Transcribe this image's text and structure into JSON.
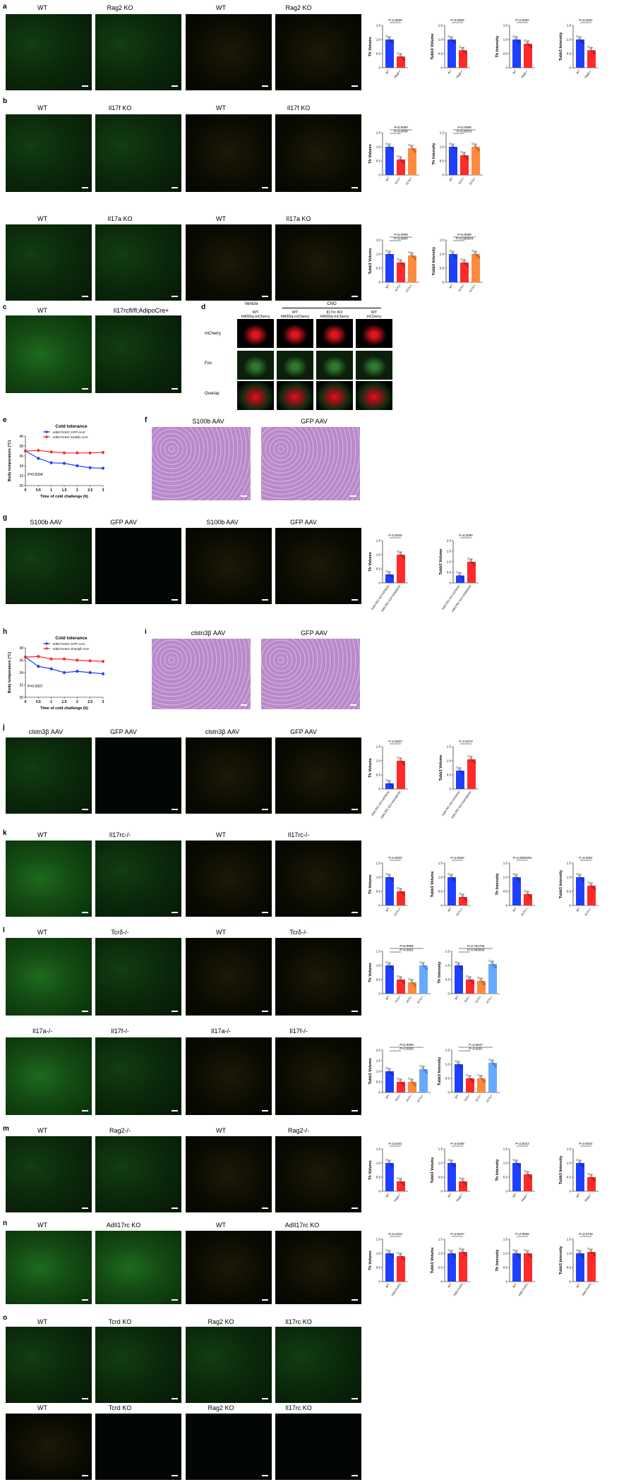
{
  "panels": {
    "a": {
      "letter": "a",
      "labels": [
        "WT",
        "Rag2 KO",
        "WT",
        "Rag2 KO"
      ]
    },
    "b": {
      "letter": "b",
      "labels": [
        "WT",
        "Il17f KO",
        "WT",
        "Il17f KO"
      ],
      "labels2": [
        "WT",
        "Il17a KO",
        "WT",
        "Il17a KO"
      ]
    },
    "c": {
      "letter": "c",
      "labels": [
        "WT",
        "Il17rcfl/fl;AdipoCre+"
      ]
    },
    "d": {
      "letter": "d",
      "group_labels": [
        "Vehicle",
        "CNO"
      ],
      "col_labels": [
        "WT\nhM3Dq-mCherry",
        "WT\nhM3Dq-mCherry",
        "Il17rc KO\nhM3Dq-mCherry",
        "WT\nmCherry"
      ],
      "row_labels": [
        "mCherry",
        "Fos",
        "Overlay"
      ]
    },
    "e": {
      "letter": "e"
    },
    "f": {
      "letter": "f",
      "labels": [
        "S100b AAV",
        "GFP AAV"
      ]
    },
    "g": {
      "letter": "g",
      "labels": [
        "S100b AAV",
        "GFP AAV",
        "S100b AAV",
        "GFP AAV"
      ]
    },
    "h": {
      "letter": "h"
    },
    "i": {
      "letter": "i",
      "labels": [
        "clstn3β AAV",
        "GFP AAV"
      ]
    },
    "j": {
      "letter": "j",
      "labels": [
        "clstn3β AAV",
        "GFP AAV",
        "clstn3β AAV",
        "GFP AAV"
      ]
    },
    "k": {
      "letter": "k",
      "labels": [
        "WT",
        "Il17rc-/-",
        "WT",
        "Il17rc-/-"
      ]
    },
    "l": {
      "letter": "l",
      "labels": [
        "WT",
        "Tcrδ-/-",
        "WT",
        "Tcrδ-/-"
      ],
      "labels2": [
        "Il17a-/-",
        "Il17f-/-",
        "Il17a-/-",
        "Il17f-/-"
      ]
    },
    "m": {
      "letter": "m",
      "labels": [
        "WT",
        "Rag2-/-",
        "WT",
        "Rag2-/-"
      ]
    },
    "n": {
      "letter": "n",
      "labels": [
        "WT",
        "AdIl17rc KO",
        "WT",
        "AdIl17rc KO"
      ]
    },
    "o": {
      "letter": "o",
      "labels": [
        "WT",
        "Tcrd KO",
        "Rag2 KO",
        "Il17rc KO"
      ],
      "labels2": [
        "WT",
        "Tcrd KO",
        "Rag2 KO",
        "Il17rc KO"
      ]
    }
  },
  "colors": {
    "blue": "#1f3fff",
    "red": "#ff2a2a",
    "orange": "#ff8a3d",
    "lightblue": "#66aaff",
    "green_signal": "#2f9a2f",
    "yellow_signal": "#d6c23a"
  },
  "chart_data": [
    {
      "id": "a1",
      "type": "bar",
      "ylabel": "Th Volume",
      "categories": [
        "WT",
        "Rag2-/-"
      ],
      "values": [
        1.0,
        0.4
      ],
      "p": "P=0.0035",
      "ylim": [
        0,
        1.5
      ],
      "yticks": [
        "0",
        "0.5",
        "1.0",
        "1.5"
      ]
    },
    {
      "id": "a2",
      "type": "bar",
      "ylabel": "Tubb3 Volume",
      "categories": [
        "WT",
        "Rag2-/-"
      ],
      "values": [
        1.0,
        0.62
      ],
      "p": "P=0.0004",
      "ylim": [
        0,
        1.5
      ],
      "yticks": [
        "0",
        "0.5",
        "1.0",
        "1.5"
      ]
    },
    {
      "id": "a3",
      "type": "bar",
      "ylabel": "Th Intensity",
      "categories": [
        "WT",
        "Rag2-/-"
      ],
      "values": [
        1.0,
        0.85
      ],
      "p": "P=0.0002",
      "ylim": [
        0,
        1.5
      ],
      "yticks": [
        "0",
        "0.5",
        "1.0",
        "1.5"
      ]
    },
    {
      "id": "a4",
      "type": "bar",
      "ylabel": "Tubb3 Intensity",
      "categories": [
        "WT",
        "Rag2-/-"
      ],
      "values": [
        1.0,
        0.62
      ],
      "p": "P=0.0281",
      "ylim": [
        0,
        1.5
      ],
      "yticks": [
        "0",
        "0.5",
        "1.0",
        "1.5"
      ]
    },
    {
      "id": "b1",
      "type": "bar",
      "ylabel": "Th Volume",
      "categories": [
        "WT",
        "Il17f-/-",
        "Il17a-/-"
      ],
      "values": [
        1.0,
        0.55,
        0.95
      ],
      "p": "P<0.9999",
      "p2": "P=0.0056",
      "ylim": [
        0,
        1.5
      ],
      "yticks": [
        "0",
        "0.5",
        "1.0",
        "1.5"
      ]
    },
    {
      "id": "b2",
      "type": "bar",
      "ylabel": "Th Intensity",
      "categories": [
        "WT",
        "Il17f-/-",
        "Il17a-/-"
      ],
      "values": [
        1.0,
        0.7,
        1.0
      ],
      "p": "P<0.9999",
      "p2": "P=0.00031",
      "ylim": [
        0,
        1.5
      ],
      "yticks": [
        "0",
        "0.5",
        "1.0",
        "1.5"
      ]
    },
    {
      "id": "b3",
      "type": "bar",
      "ylabel": "Tubb3 Volume",
      "categories": [
        "WT",
        "Il17f-/-",
        "Il17a-/-"
      ],
      "values": [
        1.0,
        0.7,
        0.95
      ],
      "p": "P<0.9999",
      "p2": "P=0.0005",
      "ylim": [
        0,
        1.5
      ],
      "yticks": [
        "0",
        "0.5",
        "1.0",
        "1.5"
      ]
    },
    {
      "id": "b4",
      "type": "bar",
      "ylabel": "Tubb3 Intensity",
      "categories": [
        "WT",
        "Il17f-/-",
        "Il17a-/-"
      ],
      "values": [
        1.0,
        0.7,
        1.0
      ],
      "p": "P<0.9999",
      "p2": "P=0.000004",
      "ylim": [
        0,
        1.5
      ],
      "yticks": [
        "0",
        "0.5",
        "1.0",
        "1.5"
      ]
    },
    {
      "id": "e",
      "type": "line",
      "title": "Cold tolerance",
      "xlabel": "Time of cold challenge (h)",
      "ylabel": "Body temperature (°C)",
      "x": [
        0,
        0.5,
        1,
        1.5,
        2,
        2.5,
        3
      ],
      "xticks": [
        "0",
        "0.5",
        "1",
        "1.5",
        "2",
        "2.5",
        "3"
      ],
      "yticks": [
        "30",
        "32",
        "34",
        "36",
        "38",
        "40"
      ],
      "ylim": [
        30,
        40
      ],
      "series": [
        {
          "name": "AdIl17rcKO GFP-AAV",
          "values": [
            37.0,
            35.5,
            34.6,
            34.5,
            34.0,
            33.6,
            33.5
          ],
          "color": "blue"
        },
        {
          "name": "AdIl17rcKO S100b-AAV",
          "values": [
            37.0,
            37.1,
            36.8,
            36.6,
            36.6,
            36.6,
            36.7
          ],
          "color": "red"
        }
      ],
      "p": "P=0.0004"
    },
    {
      "id": "g1",
      "type": "bar",
      "ylabel": "Th Volume",
      "categories": [
        "AdIl17RC KO+GFPAAV",
        "AdIl17RC KO+S100bAAV"
      ],
      "values": [
        0.3,
        1.0
      ],
      "p": "P=0.0045",
      "ylim": [
        0,
        1.5
      ],
      "yticks": [
        "0",
        "0.5",
        "1.0",
        "1.5"
      ]
    },
    {
      "id": "g2",
      "type": "bar",
      "ylabel": "Tubb3 Volume",
      "categories": [
        "AdIl17RC KO+GFPAAV",
        "AdIl17RC KO+S100bAAV"
      ],
      "values": [
        0.35,
        1.0
      ],
      "p": "P=0.0095",
      "ylim": [
        0,
        2.0
      ],
      "yticks": [
        "0",
        "0.5",
        "1.0",
        "1.5",
        "2.0"
      ]
    },
    {
      "id": "h",
      "type": "line",
      "title": "Cold tolerance",
      "xlabel": "Time of cold challenge (h)",
      "ylabel": "Body temperature (°C)",
      "x": [
        0,
        0.5,
        1,
        1.5,
        2,
        2.5,
        3
      ],
      "xticks": [
        "0",
        "0.5",
        "1",
        "1.5",
        "2",
        "2.5",
        "3"
      ],
      "yticks": [
        "30",
        "32",
        "34",
        "36",
        "38"
      ],
      "ylim": [
        30,
        38
      ],
      "series": [
        {
          "name": "AdIl17rcKO GFP-AAV",
          "values": [
            36.5,
            35.0,
            34.6,
            34.0,
            34.2,
            34.0,
            33.8
          ],
          "color": "blue"
        },
        {
          "name": "AdIl17rcKO clstn3β-AAV",
          "values": [
            36.5,
            36.6,
            36.2,
            36.2,
            36.0,
            35.9,
            35.8
          ],
          "color": "red"
        }
      ],
      "p": "P=0.0007"
    },
    {
      "id": "j1",
      "type": "bar",
      "ylabel": "Th Volume",
      "categories": [
        "AdIl17RC KO+GFPAAV",
        "AdIl17RC KO+clstn3βAAV"
      ],
      "values": [
        0.2,
        1.0
      ],
      "p": "P=0.0023",
      "ylim": [
        0,
        1.5
      ],
      "yticks": [
        "0",
        "0.5",
        "1.0",
        "1.5"
      ]
    },
    {
      "id": "j2",
      "type": "bar",
      "ylabel": "Tubb3 Volume",
      "categories": [
        "AdIl17RC KO+GFPAAV",
        "AdIl17RC KO+clstn3βAAV"
      ],
      "values": [
        0.65,
        1.05
      ],
      "p": "P=0.0274",
      "ylim": [
        0,
        1.5
      ],
      "yticks": [
        "0",
        "0.5",
        "1.0",
        "1.5"
      ]
    },
    {
      "id": "k1",
      "type": "bar",
      "ylabel": "Th Volume",
      "categories": [
        "WT",
        "Il17rc-/-"
      ],
      "values": [
        1.0,
        0.5
      ],
      "p": "P=0.0029",
      "ylim": [
        0,
        1.5
      ],
      "yticks": [
        "0",
        "0.5",
        "1.0",
        "1.5"
      ]
    },
    {
      "id": "k2",
      "type": "bar",
      "ylabel": "Tubb3 Volume",
      "categories": [
        "WT",
        "Il17rc-/-"
      ],
      "values": [
        1.0,
        0.3
      ],
      "p": "P=0.0002",
      "ylim": [
        0,
        1.5
      ],
      "yticks": [
        "0",
        "0.5",
        "1.0",
        "1.5"
      ]
    },
    {
      "id": "k3",
      "type": "bar",
      "ylabel": "Th Intensity",
      "categories": [
        "WT",
        "Il17rc-/-"
      ],
      "values": [
        1.0,
        0.4
      ],
      "p": "P=0.0000051",
      "ylim": [
        0,
        1.5
      ],
      "yticks": [
        "0",
        "0.5",
        "1.0",
        "1.5"
      ]
    },
    {
      "id": "k4",
      "type": "bar",
      "ylabel": "Tubb3 Intensity",
      "categories": [
        "WT",
        "Il17rc-/-"
      ],
      "values": [
        1.0,
        0.7
      ],
      "p": "P=0.0001",
      "ylim": [
        0,
        1.5
      ],
      "yticks": [
        "0",
        "0.5",
        "1.0",
        "1.5"
      ]
    },
    {
      "id": "l1",
      "type": "bar",
      "ylabel": "Th Volume",
      "categories": [
        "WT",
        "Tcrδ-/-",
        "Il17f-/-",
        "Il17a-/-"
      ],
      "values": [
        1.0,
        0.5,
        0.4,
        1.0
      ],
      "p": "P<0.9999",
      "p2": "P=0.0001",
      "ylim": [
        0,
        1.5
      ],
      "yticks": [
        "0",
        "0.5",
        "1.0",
        "1.5"
      ]
    },
    {
      "id": "l2",
      "type": "bar",
      "ylabel": "Th Intensity",
      "categories": [
        "WT",
        "Tcrδ-/-",
        "Il17f-/-",
        "Il17a-/-"
      ],
      "values": [
        1.0,
        0.5,
        0.45,
        1.05
      ],
      "p": "P=0.751706",
      "p2": "P=0.000009",
      "ylim": [
        0,
        1.5
      ],
      "yticks": [
        "0",
        "0.5",
        "1.0",
        "1.5"
      ]
    },
    {
      "id": "l3",
      "type": "bar",
      "ylabel": "Tubb3 Volume",
      "categories": [
        "WT",
        "Tcrδ-/-",
        "Il17f-/-",
        "Il17a-/-"
      ],
      "values": [
        1.0,
        0.5,
        0.5,
        1.1
      ],
      "p": "P<0.9999",
      "p2": "P=0.0005",
      "ylim": [
        0,
        2.0
      ],
      "yticks": [
        "0",
        "0.5",
        "1.0",
        "1.5",
        "2.0"
      ]
    },
    {
      "id": "l4",
      "type": "bar",
      "ylabel": "Tubb3 Intensity",
      "categories": [
        "WT",
        "Tcrδ-/-",
        "Il17f-/-",
        "Il17a-/-"
      ],
      "values": [
        1.0,
        0.5,
        0.5,
        1.05
      ],
      "p": "P=0.6647",
      "p2": "P=0.0001",
      "ylim": [
        0,
        1.5
      ],
      "yticks": [
        "0",
        "0.5",
        "1.0",
        "1.5"
      ]
    },
    {
      "id": "m1",
      "type": "bar",
      "ylabel": "Th Volume",
      "categories": [
        "WT",
        "Rag2-/-"
      ],
      "values": [
        1.0,
        0.35
      ],
      "p": "P=0.0341",
      "ylim": [
        0,
        1.5
      ],
      "yticks": [
        "0",
        "0.5",
        "1.0",
        "1.5"
      ]
    },
    {
      "id": "m2",
      "type": "bar",
      "ylabel": "Tubb3 Volume",
      "categories": [
        "WT",
        "Rag2-/-"
      ],
      "values": [
        1.0,
        0.35
      ],
      "p": "P=0.0346",
      "ylim": [
        0,
        1.5
      ],
      "yticks": [
        "0",
        "0.5",
        "1.0",
        "1.5"
      ]
    },
    {
      "id": "m3",
      "type": "bar",
      "ylabel": "Th Intensity",
      "categories": [
        "WT",
        "Rag2-/-"
      ],
      "values": [
        1.0,
        0.6
      ],
      "p": "P=0.0013",
      "ylim": [
        0,
        1.5
      ],
      "yticks": [
        "0",
        "0.5",
        "1.0",
        "1.5"
      ]
    },
    {
      "id": "m4",
      "type": "bar",
      "ylabel": "Tubb3 Intensity",
      "categories": [
        "WT",
        "Rag2-/-"
      ],
      "values": [
        1.0,
        0.5
      ],
      "p": "P=0.0041",
      "ylim": [
        0,
        1.5
      ],
      "yticks": [
        "0",
        "0.5",
        "1.0",
        "1.5"
      ]
    },
    {
      "id": "n1",
      "type": "bar",
      "ylabel": "Th Volume",
      "categories": [
        "WT",
        "AdIl17rcKO"
      ],
      "values": [
        1.0,
        0.9
      ],
      "p": "P=0.2415",
      "ylim": [
        0,
        1.5
      ],
      "yticks": [
        "0",
        "0.5",
        "1.0",
        "1.5"
      ]
    },
    {
      "id": "n2",
      "type": "bar",
      "ylabel": "Tubb3 Volume",
      "categories": [
        "WT",
        "AdIl17rcKO"
      ],
      "values": [
        1.0,
        1.05
      ],
      "p": "P=0.6457",
      "ylim": [
        0,
        1.5
      ],
      "yticks": [
        "0",
        "0.5",
        "1.0",
        "1.5"
      ]
    },
    {
      "id": "n3",
      "type": "bar",
      "ylabel": "Th Intensity",
      "categories": [
        "WT",
        "AdIl17rcKO"
      ],
      "values": [
        1.0,
        1.0
      ],
      "p": "P=0.9608",
      "ylim": [
        0,
        1.5
      ],
      "yticks": [
        "0",
        "0.5",
        "1.0",
        "1.5"
      ]
    },
    {
      "id": "n4",
      "type": "bar",
      "ylabel": "Tubb3 Intensity",
      "categories": [
        "WT",
        "AdIl17rcKO"
      ],
      "values": [
        1.0,
        1.05
      ],
      "p": "P=0.5728",
      "ylim": [
        0,
        1.5
      ],
      "yticks": [
        "0",
        "0.5",
        "1.0",
        "1.5"
      ]
    }
  ]
}
